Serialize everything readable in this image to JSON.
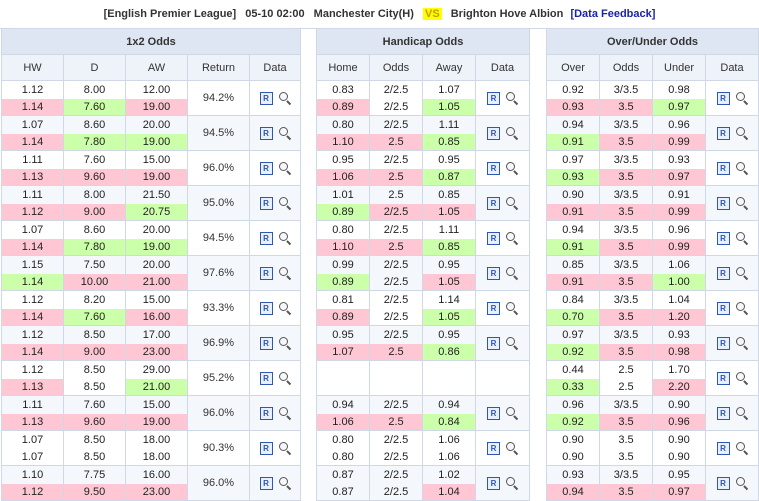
{
  "match": {
    "league": "[English Premier League]",
    "datetime": "05-10 02:00",
    "home": "Manchester City(H)",
    "vs": "VS",
    "away": "Brighton Hove Albion",
    "feedback": "[Data Feedback]"
  },
  "sections": {
    "x12": {
      "title": "1x2 Odds",
      "cols": [
        "HW",
        "D",
        "AW",
        "Return",
        "Data"
      ]
    },
    "handicap": {
      "title": "Handicap Odds",
      "cols": [
        "Home",
        "Odds",
        "Away",
        "Data"
      ]
    },
    "ou": {
      "title": "Over/Under Odds",
      "cols": [
        "Over",
        "Odds",
        "Under",
        "Data"
      ]
    }
  },
  "rows": [
    {
      "x12": {
        "hw": [
          "1.12",
          "1.14"
        ],
        "d": [
          "8.00",
          "7.60"
        ],
        "aw": [
          "12.00",
          "19.00"
        ],
        "ret": "94.2%"
      },
      "hc": {
        "home": [
          "0.83",
          "0.89"
        ],
        "odds": [
          "2/2.5",
          "2/2.5"
        ],
        "away": [
          "1.07",
          "1.05"
        ]
      },
      "ou": {
        "over": [
          "0.92",
          "0.93"
        ],
        "odds": [
          "3/3.5",
          "3.5"
        ],
        "under": [
          "0.98",
          "0.97"
        ]
      }
    },
    {
      "x12": {
        "hw": [
          "1.07",
          "1.14"
        ],
        "d": [
          "8.60",
          "7.80"
        ],
        "aw": [
          "20.00",
          "19.00"
        ],
        "ret": "94.5%"
      },
      "hc": {
        "home": [
          "0.80",
          "1.10"
        ],
        "odds": [
          "2/2.5",
          "2.5"
        ],
        "away": [
          "1.11",
          "0.85"
        ]
      },
      "ou": {
        "over": [
          "0.94",
          "0.91"
        ],
        "odds": [
          "3/3.5",
          "3.5"
        ],
        "under": [
          "0.96",
          "0.99"
        ]
      }
    },
    {
      "x12": {
        "hw": [
          "1.11",
          "1.13"
        ],
        "d": [
          "7.60",
          "9.60"
        ],
        "aw": [
          "15.00",
          "19.00"
        ],
        "ret": "96.0%"
      },
      "hc": {
        "home": [
          "0.95",
          "1.06"
        ],
        "odds": [
          "2/2.5",
          "2.5"
        ],
        "away": [
          "0.95",
          "0.87"
        ]
      },
      "ou": {
        "over": [
          "0.97",
          "0.93"
        ],
        "odds": [
          "3/3.5",
          "3.5"
        ],
        "under": [
          "0.93",
          "0.97"
        ]
      }
    },
    {
      "x12": {
        "hw": [
          "1.11",
          "1.12"
        ],
        "d": [
          "8.00",
          "9.00"
        ],
        "aw": [
          "21.50",
          "20.75"
        ],
        "ret": "95.0%"
      },
      "hc": {
        "home": [
          "1.01",
          "0.89"
        ],
        "odds": [
          "2.5",
          "2/2.5"
        ],
        "away": [
          "0.85",
          "1.05"
        ]
      },
      "ou": {
        "over": [
          "0.90",
          "0.91"
        ],
        "odds": [
          "3/3.5",
          "3.5"
        ],
        "under": [
          "0.91",
          "0.99"
        ]
      }
    },
    {
      "x12": {
        "hw": [
          "1.07",
          "1.14"
        ],
        "d": [
          "8.60",
          "7.80"
        ],
        "aw": [
          "20.00",
          "19.00"
        ],
        "ret": "94.5%"
      },
      "hc": {
        "home": [
          "0.80",
          "1.10"
        ],
        "odds": [
          "2/2.5",
          "2.5"
        ],
        "away": [
          "1.11",
          "0.85"
        ]
      },
      "ou": {
        "over": [
          "0.94",
          "0.91"
        ],
        "odds": [
          "3/3.5",
          "3.5"
        ],
        "under": [
          "0.96",
          "0.99"
        ]
      }
    },
    {
      "x12": {
        "hw": [
          "1.15",
          "1.14"
        ],
        "d": [
          "7.50",
          "10.00"
        ],
        "aw": [
          "20.00",
          "21.00"
        ],
        "ret": "97.6%"
      },
      "hc": {
        "home": [
          "0.99",
          "0.89"
        ],
        "odds": [
          "2/2.5",
          "2/2.5"
        ],
        "away": [
          "0.95",
          "1.05"
        ]
      },
      "ou": {
        "over": [
          "0.85",
          "0.91"
        ],
        "odds": [
          "3/3.5",
          "3.5"
        ],
        "under": [
          "1.06",
          "1.00"
        ]
      }
    },
    {
      "x12": {
        "hw": [
          "1.12",
          "1.14"
        ],
        "d": [
          "8.20",
          "7.60"
        ],
        "aw": [
          "15.00",
          "16.00"
        ],
        "ret": "93.3%"
      },
      "hc": {
        "home": [
          "0.81",
          "0.89"
        ],
        "odds": [
          "2/2.5",
          "2/2.5"
        ],
        "away": [
          "1.14",
          "1.05"
        ]
      },
      "ou": {
        "over": [
          "0.84",
          "0.70"
        ],
        "odds": [
          "3/3.5",
          "3.5"
        ],
        "under": [
          "1.04",
          "1.20"
        ]
      }
    },
    {
      "x12": {
        "hw": [
          "1.12",
          "1.14"
        ],
        "d": [
          "8.50",
          "9.00"
        ],
        "aw": [
          "17.00",
          "23.00"
        ],
        "ret": "96.9%"
      },
      "hc": {
        "home": [
          "0.95",
          "1.07"
        ],
        "odds": [
          "2/2.5",
          "2.5"
        ],
        "away": [
          "0.95",
          "0.86"
        ]
      },
      "ou": {
        "over": [
          "0.97",
          "0.92"
        ],
        "odds": [
          "3/3.5",
          "3.5"
        ],
        "under": [
          "0.93",
          "0.98"
        ]
      }
    },
    {
      "x12": {
        "hw": [
          "1.12",
          "1.13"
        ],
        "d": [
          "8.50",
          "8.50"
        ],
        "aw": [
          "29.00",
          "21.00"
        ],
        "ret": "95.2%"
      },
      "hc": {
        "home": [
          "",
          ""
        ],
        "odds": [
          "",
          ""
        ],
        "away": [
          "",
          ""
        ]
      },
      "ou": {
        "over": [
          "0.44",
          "0.33"
        ],
        "odds": [
          "2.5",
          "2.5"
        ],
        "under": [
          "1.70",
          "2.20"
        ]
      }
    },
    {
      "x12": {
        "hw": [
          "1.11",
          "1.13"
        ],
        "d": [
          "7.60",
          "9.60"
        ],
        "aw": [
          "15.00",
          "19.00"
        ],
        "ret": "96.0%"
      },
      "hc": {
        "home": [
          "0.94",
          "1.06"
        ],
        "odds": [
          "2/2.5",
          "2.5"
        ],
        "away": [
          "0.94",
          "0.84"
        ]
      },
      "ou": {
        "over": [
          "0.96",
          "0.92"
        ],
        "odds": [
          "3/3.5",
          "3.5"
        ],
        "under": [
          "0.90",
          "0.96"
        ]
      }
    },
    {
      "x12": {
        "hw": [
          "1.07",
          "1.07"
        ],
        "d": [
          "8.50",
          "8.50"
        ],
        "aw": [
          "18.00",
          "18.00"
        ],
        "ret": "90.3%"
      },
      "hc": {
        "home": [
          "0.80",
          "0.80"
        ],
        "odds": [
          "2/2.5",
          "2/2.5"
        ],
        "away": [
          "1.06",
          "1.06"
        ]
      },
      "ou": {
        "over": [
          "0.90",
          "0.90"
        ],
        "odds": [
          "3.5",
          "3.5"
        ],
        "under": [
          "0.90",
          "0.90"
        ]
      }
    },
    {
      "x12": {
        "hw": [
          "1.10",
          "1.12"
        ],
        "d": [
          "7.75",
          "9.50"
        ],
        "aw": [
          "16.00",
          "23.00"
        ],
        "ret": "96.0%"
      },
      "hc": {
        "home": [
          "0.87",
          "0.87"
        ],
        "odds": [
          "2/2.5",
          "2/2.5"
        ],
        "away": [
          "1.02",
          "1.04"
        ]
      },
      "ou": {
        "over": [
          "0.93",
          "0.94"
        ],
        "odds": [
          "3/3.5",
          "3.5"
        ],
        "under": [
          "0.95",
          "0.97"
        ]
      }
    }
  ],
  "icons": {
    "replay": "R",
    "magnifier": "magnifier-icon"
  },
  "colors": {
    "up": "#ffc7d3",
    "down": "#ccffaa",
    "header": "#dde6f2"
  }
}
